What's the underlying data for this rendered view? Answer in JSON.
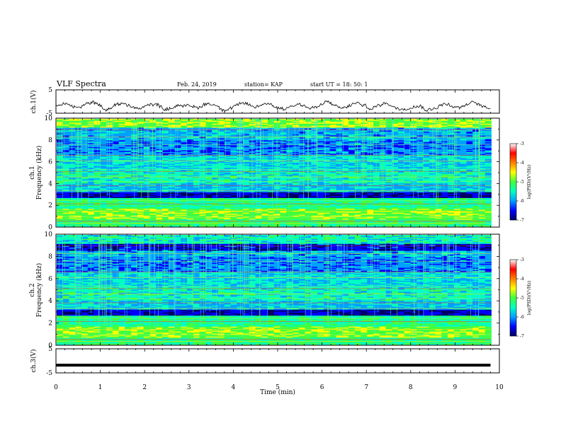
{
  "header": {
    "title": "VLF Spectra",
    "date": "Feb. 24, 2019",
    "station": "station= KAP",
    "start": "start  UT =   18: 50: 1"
  },
  "chart_data": [
    {
      "type": "line",
      "panel": "ch1-waveform",
      "ylabel": "ch.1(V)",
      "ylim": [
        -5,
        5
      ],
      "yticks": [
        "5",
        "-5"
      ],
      "xlim": [
        0,
        10
      ],
      "x_span": [
        0,
        9.8
      ],
      "baseline": -1.8,
      "amplitude": 1.4,
      "color": "#000000"
    },
    {
      "type": "heatmap",
      "panel": "ch1-spectrogram",
      "ylabel": "Frequency (kHz)",
      "ylabel_channel": "ch.1",
      "ylim": [
        0,
        10
      ],
      "yticks": [
        "0",
        "2",
        "4",
        "6",
        "8",
        "10"
      ],
      "xlim": [
        0,
        10
      ],
      "x_span": [
        0,
        9.8
      ],
      "colorbar": {
        "label": "log(PSD)(V²/Hz)",
        "range": [
          -7,
          -3
        ],
        "ticks": [
          "-3",
          "-4",
          "-5",
          "-6",
          "-7"
        ],
        "colors": [
          "#000060",
          "#0000ff",
          "#00a0ff",
          "#00ffc0",
          "#40ff40",
          "#ffff00",
          "#ff8000",
          "#ff0000",
          "#ffffff"
        ]
      }
    },
    {
      "type": "heatmap",
      "panel": "ch2-spectrogram",
      "ylabel": "Frequency (kHz)",
      "ylabel_channel": "ch.2",
      "ylim": [
        0,
        10
      ],
      "yticks": [
        "0",
        "2",
        "4",
        "6",
        "8",
        "10"
      ],
      "xlim": [
        0,
        10
      ],
      "x_span": [
        0,
        9.8
      ],
      "colorbar": {
        "label": "log(PSD)(V²/Hz)",
        "range": [
          -7,
          -3
        ],
        "ticks": [
          "-3",
          "-4",
          "-5",
          "-6",
          "-7"
        ],
        "colors": [
          "#000060",
          "#0000ff",
          "#00a0ff",
          "#00ffc0",
          "#40ff40",
          "#ffff00",
          "#ff8000",
          "#ff0000",
          "#ffffff"
        ]
      }
    },
    {
      "type": "line",
      "panel": "ch3-waveform",
      "ylabel": "ch.3(V)",
      "ylim": [
        -5,
        5
      ],
      "yticks": [
        "5",
        "-5"
      ],
      "xlim": [
        0,
        10
      ],
      "x_span": [
        0,
        9.8
      ],
      "value": -1.8,
      "color": "#000000",
      "xlabel": "Time (min)",
      "xticks": [
        "0",
        "1",
        "2",
        "3",
        "4",
        "5",
        "6",
        "7",
        "8",
        "9",
        "10"
      ]
    }
  ]
}
